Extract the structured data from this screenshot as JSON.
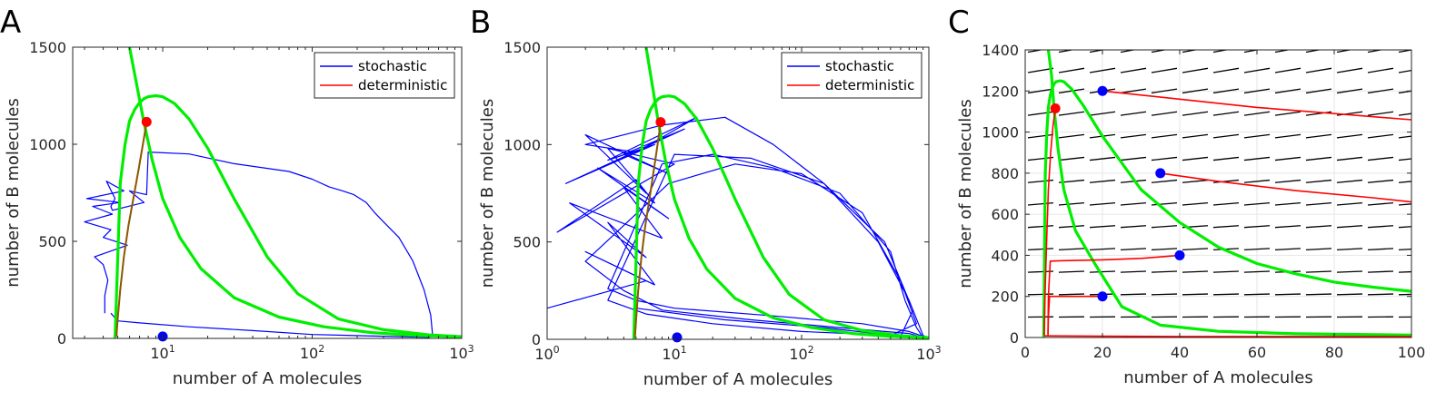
{
  "colors": {
    "stochastic": "#0000ff",
    "deterministic": "#ff0000",
    "nullcline": "#00ee00",
    "dots_blue": "#0000ff",
    "dot_red": "#ff0000",
    "field": "#000000",
    "grid": "#e6e6e6"
  },
  "chart_data": [
    {
      "panel_label": "A",
      "type": "line",
      "xscale": "log",
      "xlim": [
        2.5,
        1000
      ],
      "ylim": [
        0,
        1500
      ],
      "xticks": [
        10,
        100,
        1000
      ],
      "xticklabels": [
        "10",
        "10",
        "10"
      ],
      "xtick_exponents": [
        "1",
        "2",
        "3"
      ],
      "yticks": [
        0,
        500,
        1000,
        1500
      ],
      "yticklabels": [
        "0",
        "500",
        "1000",
        "1500"
      ],
      "xlabel": "number of A molecules",
      "ylabel": "number of B molecules",
      "legend": {
        "placement": "top-right",
        "entries": [
          "stochastic",
          "deterministic"
        ]
      },
      "grid": false,
      "series": [
        {
          "name": "stochastic",
          "x": [
            4.1,
            4.1,
            4.3,
            4.0,
            3.5,
            5.8,
            4.0,
            4.5,
            3.0,
            4.6,
            3.4,
            5.2,
            3.1,
            5.5,
            4.2,
            4.8,
            4.5,
            4.6,
            7.5,
            6.0,
            7.8,
            8.0,
            15,
            30,
            70,
            100,
            130,
            160,
            190,
            230,
            260,
            300,
            380,
            470,
            560,
            620,
            640,
            600,
            100,
            40,
            15,
            7,
            5,
            4.5
          ],
          "y": [
            130,
            220,
            300,
            380,
            420,
            480,
            520,
            560,
            600,
            640,
            680,
            700,
            720,
            760,
            810,
            720,
            680,
            660,
            700,
            760,
            740,
            960,
            950,
            900,
            860,
            820,
            780,
            760,
            740,
            700,
            650,
            600,
            520,
            400,
            250,
            120,
            10,
            5,
            20,
            40,
            60,
            80,
            90,
            130
          ]
        },
        {
          "name": "deterministic",
          "x": [
            4.9,
            5.0,
            5.2,
            5.5,
            5.9,
            6.4,
            6.9,
            7.3,
            7.6,
            7.8
          ],
          "y": [
            10,
            100,
            250,
            420,
            580,
            730,
            870,
            980,
            1060,
            1110
          ]
        },
        {
          "name": "",
          "role": "B-nullcline",
          "x": [
            4.8,
            5.2,
            5.6,
            6.0,
            6.5,
            7.0,
            7.5,
            8.0,
            9.0,
            10,
            12,
            15,
            20,
            30,
            50,
            80,
            150,
            300,
            600,
            1000
          ],
          "y": [
            0,
            800,
            1000,
            1120,
            1180,
            1215,
            1235,
            1245,
            1250,
            1245,
            1210,
            1130,
            980,
            720,
            420,
            230,
            100,
            45,
            18,
            9
          ]
        },
        {
          "name": "",
          "role": "A-nullcline",
          "x": [
            6.0,
            6.8,
            7.5,
            8.5,
            10,
            13,
            18,
            30,
            60,
            120,
            250,
            500,
            1000
          ],
          "y": [
            1500,
            1280,
            1110,
            920,
            720,
            520,
            360,
            210,
            110,
            60,
            30,
            15,
            8
          ]
        }
      ],
      "points": [
        {
          "x": 10,
          "y": 10,
          "color": "blue"
        },
        {
          "x": 7.8,
          "y": 1115,
          "color": "red"
        }
      ]
    },
    {
      "panel_label": "B",
      "type": "line",
      "xscale": "log",
      "xlim": [
        1,
        1000
      ],
      "ylim": [
        0,
        1500
      ],
      "xticks": [
        1,
        10,
        100,
        1000
      ],
      "xticklabels": [
        "10",
        "10",
        "10",
        "10"
      ],
      "xtick_exponents": [
        "0",
        "1",
        "2",
        "3"
      ],
      "yticks": [
        0,
        500,
        1000,
        1500
      ],
      "yticklabels": [
        "0",
        "500",
        "1000",
        "1500"
      ],
      "xlabel": "number of A molecules",
      "ylabel": "number of B molecules",
      "legend": {
        "placement": "top-right",
        "entries": [
          "stochastic",
          "deterministic"
        ]
      },
      "grid": false,
      "series": [
        {
          "name": "stochastic",
          "x": [
            1.0,
            6,
            2,
            7,
            3,
            6,
            1.5,
            8,
            4,
            9,
            2.5,
            7,
            5,
            1.2,
            10,
            3,
            6,
            2,
            9,
            4,
            12,
            1.4,
            7,
            3,
            15,
            5,
            2,
            8,
            25,
            60,
            150,
            400,
            700,
            900,
            1000,
            700,
            300,
            60,
            10,
            5,
            3,
            8,
            20,
            60,
            200,
            500,
            650,
            800,
            900,
            700,
            200,
            40,
            8,
            4,
            2,
            9,
            30,
            100,
            300,
            600,
            800,
            500,
            100,
            20,
            6,
            3,
            10,
            40,
            150,
            450,
            750,
            600,
            150,
            25,
            5
          ],
          "y": [
            160,
            300,
            450,
            280,
            600,
            420,
            700,
            520,
            780,
            620,
            880,
            700,
            820,
            550,
            900,
            980,
            750,
            1050,
            850,
            950,
            1080,
            800,
            1000,
            920,
            1140,
            960,
            1000,
            1100,
            1140,
            1000,
            800,
            500,
            200,
            20,
            5,
            40,
            80,
            120,
            160,
            200,
            260,
            900,
            950,
            880,
            750,
            450,
            200,
            60,
            10,
            30,
            60,
            100,
            150,
            250,
            400,
            800,
            900,
            850,
            650,
            300,
            80,
            20,
            40,
            80,
            130,
            200,
            950,
            930,
            800,
            500,
            150,
            15,
            60,
            100,
            160
          ]
        },
        {
          "name": "deterministic",
          "x": [
            4.9,
            5.0,
            5.2,
            5.5,
            5.9,
            6.4,
            6.9,
            7.3,
            7.6,
            7.8
          ],
          "y": [
            10,
            100,
            250,
            420,
            580,
            730,
            870,
            980,
            1060,
            1110
          ]
        },
        {
          "name": "",
          "role": "B-nullcline",
          "x": [
            4.8,
            5.2,
            5.6,
            6.0,
            6.5,
            7.0,
            7.5,
            8.0,
            9.0,
            10,
            12,
            15,
            20,
            30,
            50,
            80,
            150,
            300,
            600,
            1000
          ],
          "y": [
            0,
            800,
            1000,
            1120,
            1180,
            1215,
            1235,
            1245,
            1250,
            1245,
            1210,
            1130,
            980,
            720,
            420,
            230,
            100,
            45,
            18,
            9
          ]
        },
        {
          "name": "",
          "role": "A-nullcline",
          "x": [
            6.0,
            6.8,
            7.5,
            8.5,
            10,
            13,
            18,
            30,
            60,
            120,
            250,
            500,
            1000
          ],
          "y": [
            1500,
            1280,
            1110,
            920,
            720,
            520,
            360,
            210,
            110,
            60,
            30,
            15,
            8
          ]
        }
      ],
      "points": [
        {
          "x": 10.5,
          "y": 10,
          "color": "blue"
        },
        {
          "x": 7.8,
          "y": 1115,
          "color": "red"
        }
      ]
    },
    {
      "panel_label": "C",
      "type": "line",
      "xscale": "linear",
      "xlim": [
        0,
        100
      ],
      "ylim": [
        0,
        1400
      ],
      "xticks": [
        0,
        20,
        40,
        60,
        80,
        100
      ],
      "xticklabels": [
        "0",
        "20",
        "40",
        "60",
        "80",
        "100"
      ],
      "yticks": [
        0,
        200,
        400,
        600,
        800,
        1000,
        1200,
        1400
      ],
      "yticklabels": [
        "0",
        "200",
        "400",
        "600",
        "800",
        "1000",
        "1200",
        "1400"
      ],
      "xlabel": "number of A molecules",
      "ylabel": "number of B molecules",
      "grid": true,
      "series": [
        {
          "name": "",
          "role": "B-nullcline",
          "x": [
            4.8,
            5.2,
            5.6,
            6.0,
            6.5,
            7.0,
            7.5,
            8.0,
            9.0,
            10,
            12,
            15,
            20,
            30,
            40,
            50,
            60,
            70,
            80,
            90,
            100
          ],
          "y": [
            0,
            800,
            1000,
            1120,
            1180,
            1215,
            1235,
            1245,
            1250,
            1245,
            1210,
            1130,
            980,
            720,
            560,
            440,
            360,
            310,
            270,
            245,
            225
          ]
        },
        {
          "name": "",
          "role": "A-nullcline",
          "x": [
            6.0,
            6.8,
            7.5,
            8.5,
            10,
            13,
            18,
            25,
            35,
            50,
            70,
            100
          ],
          "y": [
            1400,
            1280,
            1110,
            920,
            720,
            520,
            360,
            150,
            60,
            30,
            18,
            12
          ]
        },
        {
          "name": "",
          "role": "deterministic-1",
          "x": [
            20,
            40,
            60,
            80,
            100
          ],
          "y": [
            1200,
            1160,
            1120,
            1090,
            1060
          ]
        },
        {
          "name": "",
          "role": "deterministic-2",
          "x": [
            35,
            50,
            70,
            90,
            100
          ],
          "y": [
            800,
            760,
            715,
            680,
            660
          ]
        },
        {
          "name": "",
          "role": "deterministic-3",
          "x": [
            40,
            30,
            20,
            10,
            6.5,
            6.0,
            5.9
          ],
          "y": [
            400,
            385,
            378,
            374,
            372,
            200,
            20
          ]
        },
        {
          "name": "",
          "role": "deterministic-4",
          "x": [
            20,
            10,
            6.3,
            6.0,
            5.9
          ],
          "y": [
            200,
            200,
            200,
            100,
            10
          ]
        },
        {
          "name": "",
          "role": "deterministic-5",
          "x": [
            4.9,
            5.2,
            5.6,
            6.0,
            6.6,
            7.2,
            7.8
          ],
          "y": [
            10,
            250,
            500,
            720,
            900,
            1030,
            1115
          ]
        },
        {
          "name": "",
          "role": "deterministic-6",
          "x": [
            5,
            20,
            40,
            60,
            80,
            100
          ],
          "y": [
            8,
            6,
            5,
            5,
            5,
            5
          ]
        }
      ],
      "points": [
        {
          "x": 20,
          "y": 1200,
          "color": "blue"
        },
        {
          "x": 35,
          "y": 800,
          "color": "blue"
        },
        {
          "x": 40,
          "y": 400,
          "color": "blue"
        },
        {
          "x": 20,
          "y": 200,
          "color": "blue"
        },
        {
          "x": 7.8,
          "y": 1115,
          "color": "red"
        }
      ],
      "vector_field": {
        "x": [
          4,
          12,
          20,
          28,
          36,
          44,
          52,
          60,
          68,
          76,
          84,
          92,
          100
        ],
        "y": [
          100,
          210,
          320,
          430,
          540,
          650,
          760,
          870,
          980,
          1090,
          1200,
          1300,
          1400
        ]
      }
    }
  ]
}
